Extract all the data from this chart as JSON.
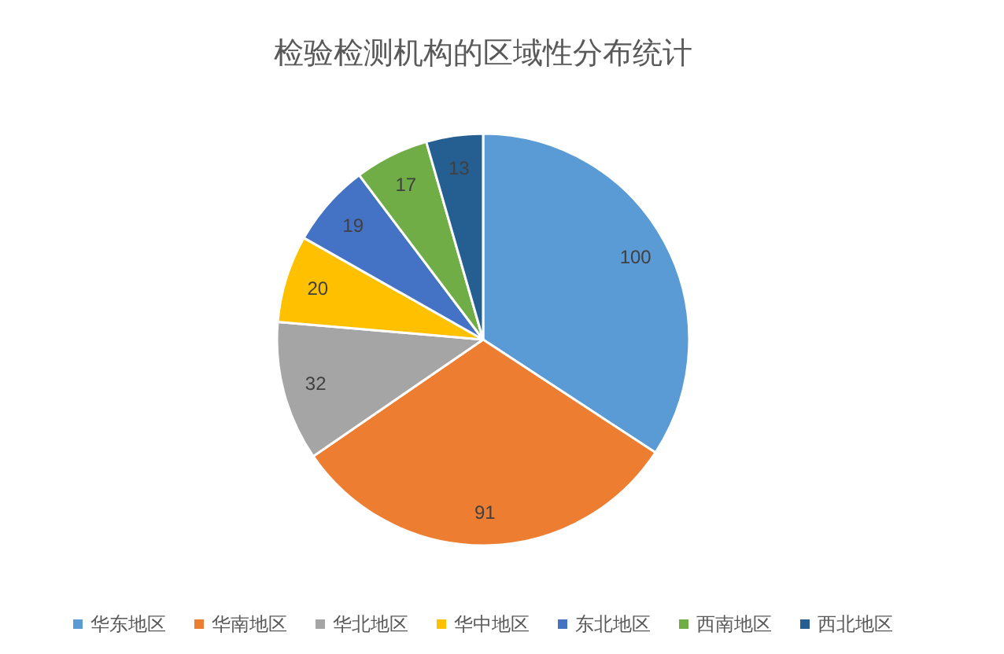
{
  "chart_data": {
    "type": "pie",
    "title": "检验检测机构的区域性分布统计",
    "categories": [
      "华东地区",
      "华南地区",
      "华北地区",
      "华中地区",
      "东北地区",
      "西南地区",
      "西北地区"
    ],
    "values": [
      100,
      91,
      32,
      20,
      19,
      17,
      13
    ],
    "colors": [
      "#5b9bd5",
      "#ed7d31",
      "#a5a5a5",
      "#ffc000",
      "#4472c4",
      "#70ad47",
      "#255e91"
    ],
    "data_labels": true,
    "legend": "bottom"
  }
}
